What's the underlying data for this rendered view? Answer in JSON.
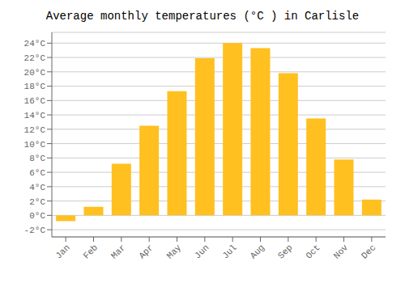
{
  "chart_data": {
    "type": "bar",
    "title": "Average monthly temperatures (°C ) in Carlisle",
    "categories": [
      "Jan",
      "Feb",
      "Mar",
      "Apr",
      "May",
      "Jun",
      "Jul",
      "Aug",
      "Sep",
      "Oct",
      "Nov",
      "Dec"
    ],
    "values": [
      -0.8,
      1.2,
      7.2,
      12.5,
      17.3,
      21.9,
      24.0,
      23.3,
      19.8,
      13.5,
      7.8,
      2.2
    ],
    "color": "#FFC020",
    "ylim": [
      -3,
      25.5
    ],
    "yticks": [
      {
        "value": -2,
        "label": "-2°C"
      },
      {
        "value": 0,
        "label": "0°C"
      },
      {
        "value": 2,
        "label": "2°C"
      },
      {
        "value": 4,
        "label": "4°C"
      },
      {
        "value": 6,
        "label": "6°C"
      },
      {
        "value": 8,
        "label": "8°C"
      },
      {
        "value": 10,
        "label": "10°C"
      },
      {
        "value": 12,
        "label": "12°C"
      },
      {
        "value": 14,
        "label": "14°C"
      },
      {
        "value": 16,
        "label": "16°C"
      },
      {
        "value": 18,
        "label": "18°C"
      },
      {
        "value": 20,
        "label": "20°C"
      },
      {
        "value": 22,
        "label": "22°C"
      },
      {
        "value": 24,
        "label": "24°C"
      }
    ],
    "grid": true
  }
}
